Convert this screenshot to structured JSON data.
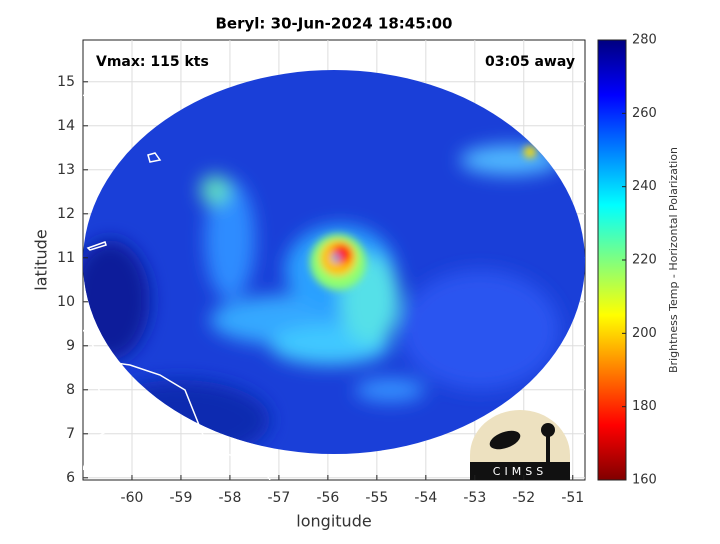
{
  "chart_data": {
    "type": "image",
    "title": "Beryl: 30-Jun-2024 18:45:00",
    "annotations": [
      "Vmax: 115 kts",
      "03:05 away"
    ],
    "xlabel": "longitude",
    "ylabel": "latitude",
    "xlim": [
      -61,
      -50.75
    ],
    "xticks": [
      -60,
      -59,
      -58,
      -57,
      -56,
      -55,
      -54,
      -53,
      -52,
      -51
    ],
    "ylim": [
      5.95,
      15.95
    ],
    "yticks": [
      6,
      7,
      8,
      9,
      10,
      11,
      12,
      13,
      14,
      15
    ],
    "grid": true,
    "colorbar": {
      "label": "Brightness Temp - Horizontal Polarization",
      "clim": [
        160,
        280
      ],
      "cticks": [
        160,
        180,
        200,
        220,
        240,
        260,
        280
      ],
      "colormap": "jet"
    },
    "logo": "CIMSS"
  }
}
